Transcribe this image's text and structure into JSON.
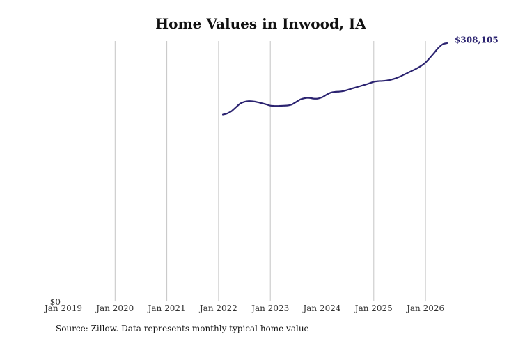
{
  "chart_data": {
    "type": "line",
    "title": "Home Values in Inwood, IA",
    "source": "Source: Zillow. Data represents monthly typical home value",
    "xlabel": "",
    "ylabel": "",
    "x_ticks": [
      "Jan 2019",
      "Jan 2020",
      "Jan 2021",
      "Jan 2022",
      "Jan 2023",
      "Jan 2024",
      "Jan 2025",
      "Jan 2026"
    ],
    "y_ticks": [
      "$0"
    ],
    "ylim": [
      0,
      308105
    ],
    "grid": "vertical",
    "line_color": "#2b2370",
    "end_label": "$308,105",
    "series": [
      {
        "x": [
          "2022-02",
          "2022-03",
          "2022-04",
          "2022-05",
          "2022-06",
          "2022-07",
          "2022-08",
          "2022-09",
          "2022-10",
          "2022-11",
          "2022-12",
          "2023-01",
          "2023-02",
          "2023-03",
          "2023-04",
          "2023-05",
          "2023-06",
          "2023-07",
          "2023-08",
          "2023-09",
          "2023-10",
          "2023-11",
          "2023-12",
          "2024-01",
          "2024-02",
          "2024-03",
          "2024-04",
          "2024-05",
          "2024-06",
          "2024-07",
          "2024-08",
          "2024-09",
          "2024-10",
          "2024-11",
          "2024-12",
          "2025-01",
          "2025-02",
          "2025-03",
          "2025-04",
          "2025-05",
          "2025-06",
          "2025-07",
          "2025-08",
          "2025-09",
          "2025-10",
          "2025-11",
          "2025-12",
          "2026-01",
          "2026-02",
          "2026-03",
          "2026-04",
          "2026-05",
          "2026-06"
        ],
        "values": [
          223000,
          224200,
          227000,
          231500,
          236000,
          238200,
          239000,
          238700,
          237800,
          236500,
          235200,
          233600,
          233200,
          233300,
          233500,
          233800,
          235000,
          238000,
          241000,
          242500,
          242800,
          242000,
          242000,
          243500,
          246500,
          249000,
          250000,
          250300,
          251000,
          252500,
          254000,
          255500,
          257000,
          258500,
          260200,
          262000,
          262800,
          263000,
          263500,
          264500,
          266000,
          268000,
          270500,
          273000,
          275500,
          278000,
          281000,
          285000,
          290500,
          296500,
          302500,
          306800,
          308105
        ]
      }
    ]
  }
}
